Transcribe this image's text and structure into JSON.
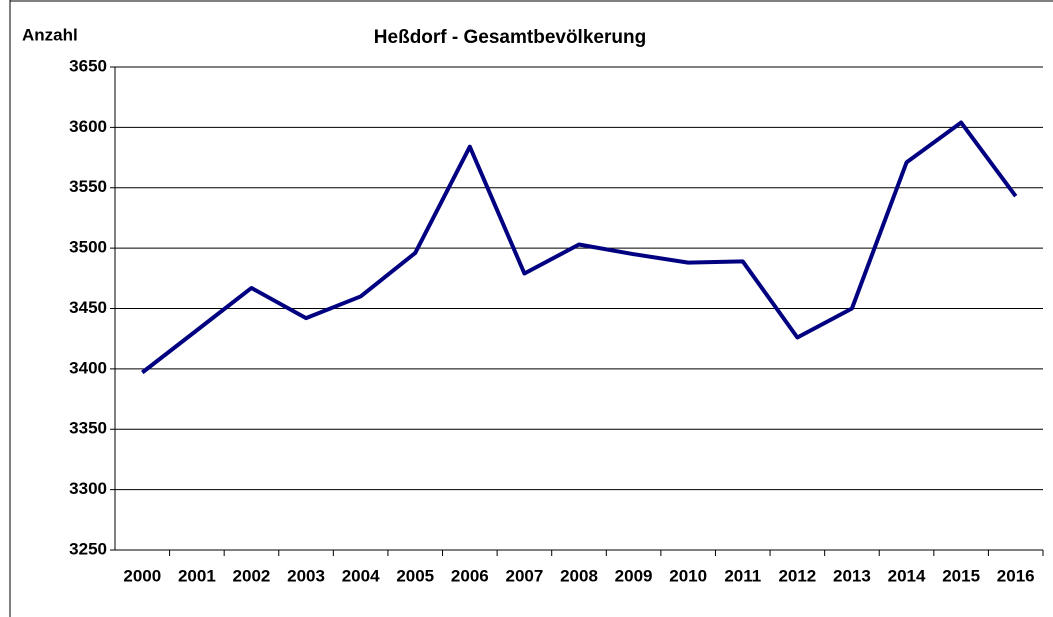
{
  "chart_data": {
    "type": "line",
    "title": "Heßdorf -  Gesamtbevölkerung",
    "y_label": "Anzahl",
    "categories": [
      "2000",
      "2001",
      "2002",
      "2003",
      "2004",
      "2005",
      "2006",
      "2007",
      "2008",
      "2009",
      "2010",
      "2011",
      "2012",
      "2013",
      "2014",
      "2015",
      "2016"
    ],
    "series": [
      {
        "name": "Gesamtbevölkerung",
        "color": "#000080",
        "values": [
          3397,
          3432,
          3467,
          3442,
          3460,
          3496,
          3584,
          3479,
          3503,
          3495,
          3488,
          3489,
          3426,
          3450,
          3571,
          3604,
          3543
        ]
      }
    ],
    "ylim": [
      3250,
      3650
    ],
    "yticks": [
      3250,
      3300,
      3350,
      3400,
      3450,
      3500,
      3550,
      3600,
      3650
    ],
    "grid": true
  }
}
